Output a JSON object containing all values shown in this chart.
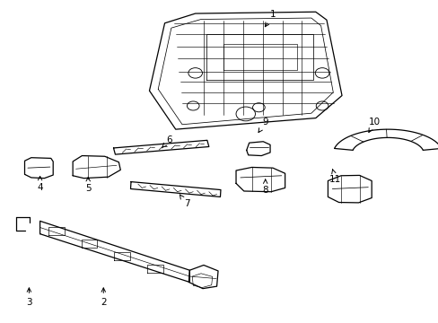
{
  "background_color": "#ffffff",
  "line_color": "#000000",
  "lw": 0.9,
  "figsize": [
    4.89,
    3.6
  ],
  "dpi": 100,
  "labels": {
    "1": [
      0.623,
      0.958,
      0.6,
      0.91
    ],
    "2": [
      0.235,
      0.062,
      0.235,
      0.118
    ],
    "3": [
      0.065,
      0.062,
      0.065,
      0.118
    ],
    "4": [
      0.09,
      0.418,
      0.09,
      0.465
    ],
    "5": [
      0.2,
      0.415,
      0.2,
      0.462
    ],
    "6": [
      0.385,
      0.568,
      0.365,
      0.536
    ],
    "7": [
      0.425,
      0.368,
      0.405,
      0.405
    ],
    "8": [
      0.605,
      0.412,
      0.605,
      0.455
    ],
    "9": [
      0.605,
      0.622,
      0.588,
      0.588
    ],
    "10": [
      0.855,
      0.622,
      0.84,
      0.588
    ],
    "11": [
      0.765,
      0.445,
      0.758,
      0.478
    ]
  }
}
